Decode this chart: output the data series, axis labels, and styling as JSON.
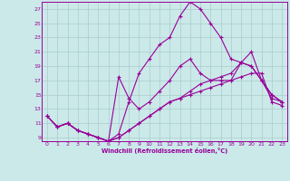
{
  "xlabel": "Windchill (Refroidissement éolien,°C)",
  "background_color": "#cbe9e9",
  "line_color": "#990099",
  "grid_color": "#aacccc",
  "xlim": [
    -0.5,
    23.5
  ],
  "ylim": [
    8.5,
    28.0
  ],
  "yticks": [
    9,
    11,
    13,
    15,
    17,
    19,
    21,
    23,
    25,
    27
  ],
  "xticks": [
    0,
    1,
    2,
    3,
    4,
    5,
    6,
    7,
    8,
    9,
    10,
    11,
    12,
    13,
    14,
    15,
    16,
    17,
    18,
    19,
    20,
    21,
    22,
    23
  ],
  "line1_x": [
    0,
    1,
    2,
    3,
    4,
    5,
    6,
    7,
    8,
    9,
    10,
    11,
    12,
    13,
    14,
    15,
    16,
    17,
    18,
    19,
    20,
    21,
    22,
    23
  ],
  "line1_y": [
    12.0,
    10.5,
    11.0,
    10.0,
    9.5,
    9.0,
    8.5,
    9.0,
    10.0,
    11.0,
    12.0,
    13.0,
    14.0,
    14.5,
    15.0,
    15.5,
    16.0,
    16.5,
    17.0,
    17.5,
    18.0,
    18.0,
    14.0,
    13.5
  ],
  "line2_x": [
    0,
    1,
    2,
    3,
    4,
    5,
    6,
    7,
    8,
    9,
    10,
    11,
    12,
    13,
    14,
    15,
    16,
    17,
    18,
    19,
    20,
    21,
    22,
    23
  ],
  "line2_y": [
    12.0,
    10.5,
    11.0,
    10.0,
    9.5,
    9.0,
    8.5,
    9.5,
    14.0,
    18.0,
    20.0,
    22.0,
    23.0,
    26.0,
    28.0,
    27.0,
    25.0,
    23.0,
    20.0,
    19.5,
    21.0,
    17.0,
    15.0,
    14.0
  ],
  "line3_x": [
    0,
    1,
    2,
    3,
    4,
    5,
    6,
    7,
    8,
    9,
    10,
    11,
    12,
    13,
    14,
    15,
    16,
    17,
    18,
    19,
    20,
    21,
    22,
    23
  ],
  "line3_y": [
    12.0,
    10.5,
    11.0,
    10.0,
    9.5,
    9.0,
    8.5,
    17.5,
    14.5,
    13.0,
    14.0,
    15.5,
    17.0,
    19.0,
    20.0,
    18.0,
    17.0,
    17.0,
    17.0,
    19.5,
    19.0,
    17.0,
    15.0,
    14.0
  ],
  "line4_x": [
    0,
    1,
    2,
    3,
    4,
    5,
    6,
    7,
    8,
    9,
    10,
    11,
    12,
    13,
    14,
    15,
    16,
    17,
    18,
    19,
    20,
    21,
    22,
    23
  ],
  "line4_y": [
    12.0,
    10.5,
    11.0,
    10.0,
    9.5,
    9.0,
    8.5,
    9.0,
    10.0,
    11.0,
    12.0,
    13.0,
    14.0,
    14.5,
    15.5,
    16.5,
    17.0,
    17.5,
    18.0,
    19.5,
    19.0,
    17.0,
    14.5,
    14.0
  ]
}
